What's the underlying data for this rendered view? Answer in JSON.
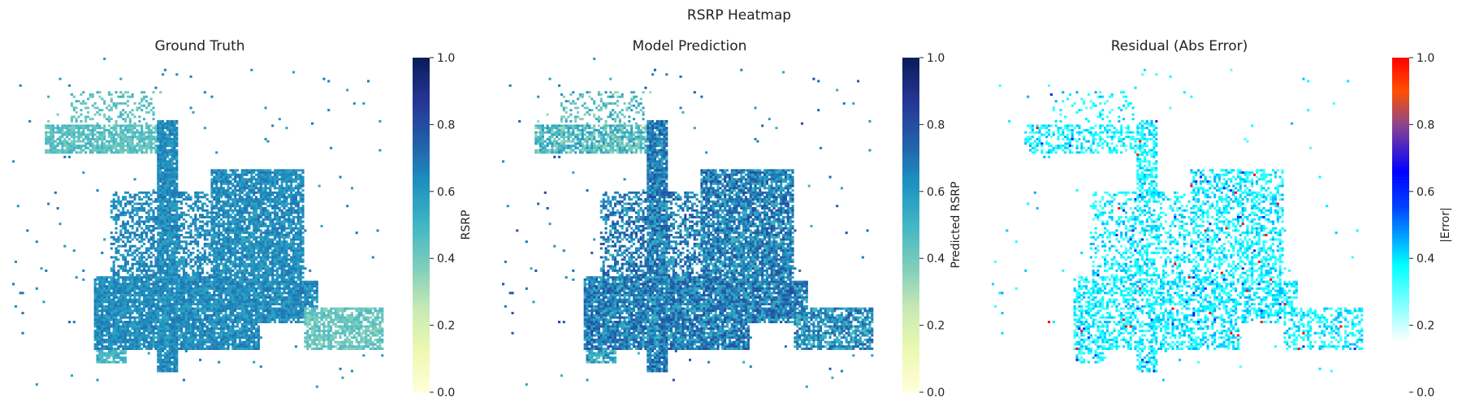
{
  "figure": {
    "title": "RSRP Heatmap"
  },
  "chart_data": [
    {
      "type": "heatmap",
      "title": "Ground Truth",
      "colorbar": {
        "label": "RSRP",
        "colormap": "YlGnBu",
        "range": [
          0,
          1
        ],
        "ticks": [
          "0.0",
          "0.2",
          "0.4",
          "0.6",
          "0.8",
          "1.0"
        ]
      },
      "axes_visible": false,
      "regions_note_values": {
        "north_branch_mean": 0.45,
        "central_body_mean": 0.63,
        "east_tail_mean": 0.42,
        "south_patch_mean": 0.5
      }
    },
    {
      "type": "heatmap",
      "title": "Model Prediction",
      "colorbar": {
        "label": "Predicted RSRP",
        "colormap": "YlGnBu",
        "range": [
          0,
          1
        ],
        "ticks": [
          "0.0",
          "0.2",
          "0.4",
          "0.6",
          "0.8",
          "1.0"
        ]
      },
      "axes_visible": false,
      "regions_note_values": {
        "north_branch_mean": 0.47,
        "central_body_mean": 0.66,
        "east_tail_mean": 0.62,
        "south_patch_mean": 0.55
      }
    },
    {
      "type": "heatmap",
      "title": "Residual (Abs Error)",
      "colorbar": {
        "label": "|Error|",
        "colormap": "white-cyan-blue-red",
        "range": [
          0,
          1
        ],
        "ticks": [
          "0.0",
          "0.2",
          "0.4",
          "0.6",
          "0.8",
          "1.0"
        ]
      },
      "axes_visible": false,
      "regions_note_values": {
        "typical_error": 0.3,
        "max_error": 1.0
      }
    }
  ]
}
